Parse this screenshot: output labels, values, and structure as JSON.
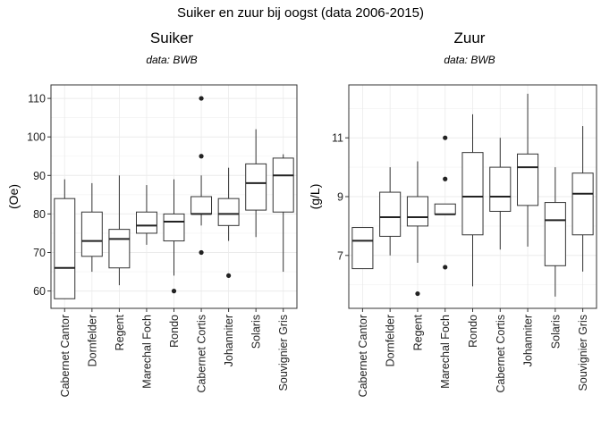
{
  "figure_title": "Suiker en zuur bij oogst (data 2006-2015)",
  "chart_data": [
    {
      "type": "boxplot",
      "title": "Suiker",
      "subtitle": "data: BWB",
      "xlabel": "",
      "ylabel": "(Oe)",
      "ylim": [
        55.5,
        113.5
      ],
      "yticks": [
        60,
        70,
        80,
        90,
        100,
        110
      ],
      "grid": true,
      "categories": [
        "Cabernet Cantor",
        "Dornfelder",
        "Regent",
        "Marechal Foch",
        "Rondo",
        "Cabernet Cortis",
        "Johanniter",
        "Solaris",
        "Souvignier Gris"
      ],
      "boxes": [
        {
          "min": 58,
          "q1": 58,
          "median": 66,
          "q3": 84,
          "max": 89,
          "outliers": []
        },
        {
          "min": 65,
          "q1": 69,
          "median": 73,
          "q3": 80.5,
          "max": 88,
          "outliers": []
        },
        {
          "min": 61.5,
          "q1": 66,
          "median": 73.5,
          "q3": 76,
          "max": 90,
          "outliers": []
        },
        {
          "min": 72,
          "q1": 75,
          "median": 77,
          "q3": 80.5,
          "max": 87.5,
          "outliers": []
        },
        {
          "min": 64,
          "q1": 73,
          "median": 78,
          "q3": 80,
          "max": 89,
          "outliers": [
            60
          ]
        },
        {
          "min": 77,
          "q1": 80,
          "median": 80,
          "q3": 84.5,
          "max": 90,
          "outliers": [
            110,
            95,
            70
          ]
        },
        {
          "min": 73,
          "q1": 77,
          "median": 80,
          "q3": 84,
          "max": 92,
          "outliers": [
            64
          ]
        },
        {
          "min": 74,
          "q1": 81,
          "median": 88,
          "q3": 93,
          "max": 102,
          "outliers": []
        },
        {
          "min": 65,
          "q1": 80.5,
          "median": 90,
          "q3": 94.5,
          "max": 95.5,
          "outliers": []
        }
      ]
    },
    {
      "type": "boxplot",
      "title": "Zuur",
      "subtitle": "data: BWB",
      "xlabel": "",
      "ylabel": "(g/L)",
      "ylim": [
        5.2,
        12.8
      ],
      "yticks": [
        7,
        9,
        11
      ],
      "grid": true,
      "categories": [
        "Cabernet Cantor",
        "Dornfelder",
        "Regent",
        "Marechal Foch",
        "Rondo",
        "Cabernet Cortis",
        "Johanniter",
        "Solaris",
        "Souvignier Gris"
      ],
      "boxes": [
        {
          "min": 6.55,
          "q1": 6.55,
          "median": 7.5,
          "q3": 7.95,
          "max": 7.95,
          "outliers": []
        },
        {
          "min": 7.0,
          "q1": 7.65,
          "median": 8.3,
          "q3": 9.15,
          "max": 10.0,
          "outliers": []
        },
        {
          "min": 6.75,
          "q1": 8.0,
          "median": 8.3,
          "q3": 9.0,
          "max": 10.2,
          "outliers": [
            5.7
          ]
        },
        {
          "min": 8.4,
          "q1": 8.4,
          "median": 8.4,
          "q3": 8.75,
          "max": 8.75,
          "outliers": [
            11.0,
            9.6,
            6.6
          ]
        },
        {
          "min": 5.95,
          "q1": 7.7,
          "median": 9.0,
          "q3": 10.5,
          "max": 11.8,
          "outliers": []
        },
        {
          "min": 7.2,
          "q1": 8.5,
          "median": 9.0,
          "q3": 10.0,
          "max": 11.0,
          "outliers": []
        },
        {
          "min": 7.3,
          "q1": 8.7,
          "median": 10.0,
          "q3": 10.45,
          "max": 12.5,
          "outliers": []
        },
        {
          "min": 5.6,
          "q1": 6.65,
          "median": 8.2,
          "q3": 8.8,
          "max": 10.0,
          "outliers": []
        },
        {
          "min": 6.45,
          "q1": 7.7,
          "median": 9.1,
          "q3": 9.8,
          "max": 11.4,
          "outliers": []
        }
      ]
    }
  ]
}
